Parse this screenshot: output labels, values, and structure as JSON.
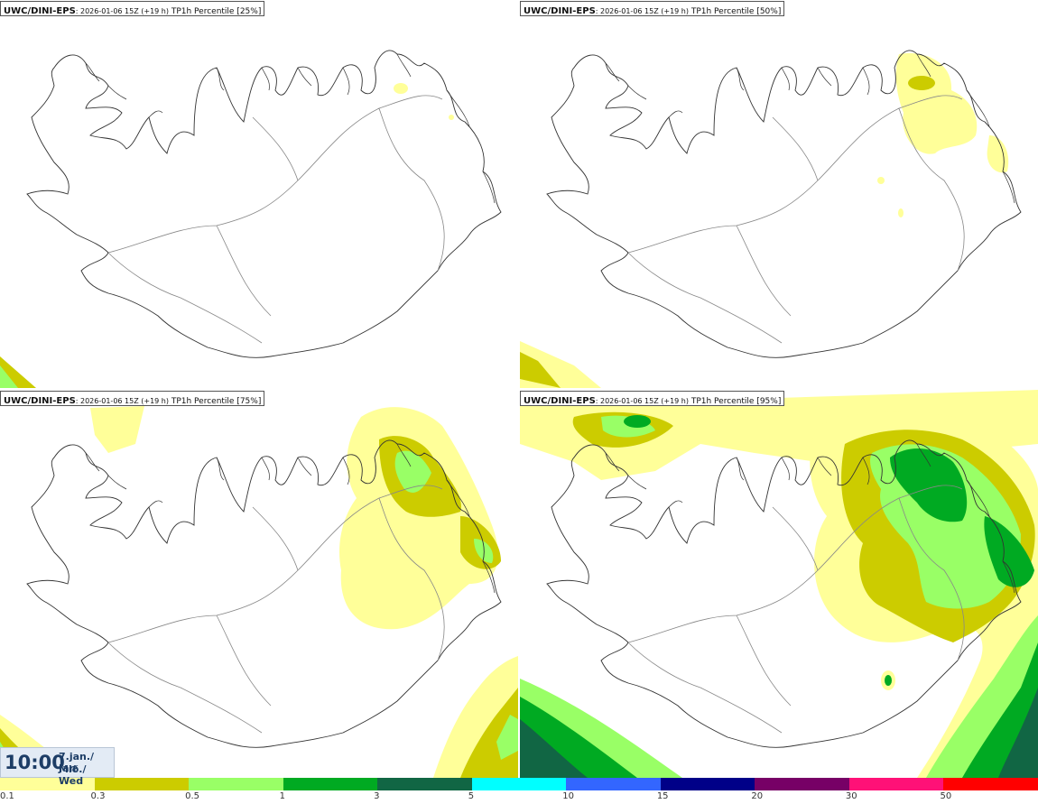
{
  "panels": [
    {
      "model": "UWC/DINI-EPS",
      "run": ": 2026-01-06 15Z (+19 h)",
      "param": " TP1h Percentile [25%]"
    },
    {
      "model": "UWC/DINI-EPS",
      "run": ": 2026-01-06 15Z (+19 h)",
      "param": " TP1h Percentile [50%]"
    },
    {
      "model": "UWC/DINI-EPS",
      "run": ": 2026-01-06 15Z (+19 h)",
      "param": " TP1h Percentile [75%]"
    },
    {
      "model": "UWC/DINI-EPS",
      "run": ": 2026-01-06 15Z (+19 h)",
      "param": " TP1h Percentile [95%]"
    }
  ],
  "valid_time": {
    "time": "10:00",
    "date_line1": "7.jan./ Jan",
    "date_line2": "Mið./ Wed"
  },
  "legend": {
    "labels": [
      "0.1",
      "0.3",
      "0.5",
      "1",
      "3",
      "5",
      "10",
      "15",
      "20",
      "30",
      "50"
    ],
    "colors": [
      "#ffff99",
      "#cccc00",
      "#99ff66",
      "#00aa22",
      "#116644",
      "#00ffff",
      "#3366ff",
      "#000088",
      "#770066",
      "#ff1177",
      "#ff0000"
    ]
  },
  "colors": {
    "coast": "#333333",
    "roads": "#888888"
  }
}
